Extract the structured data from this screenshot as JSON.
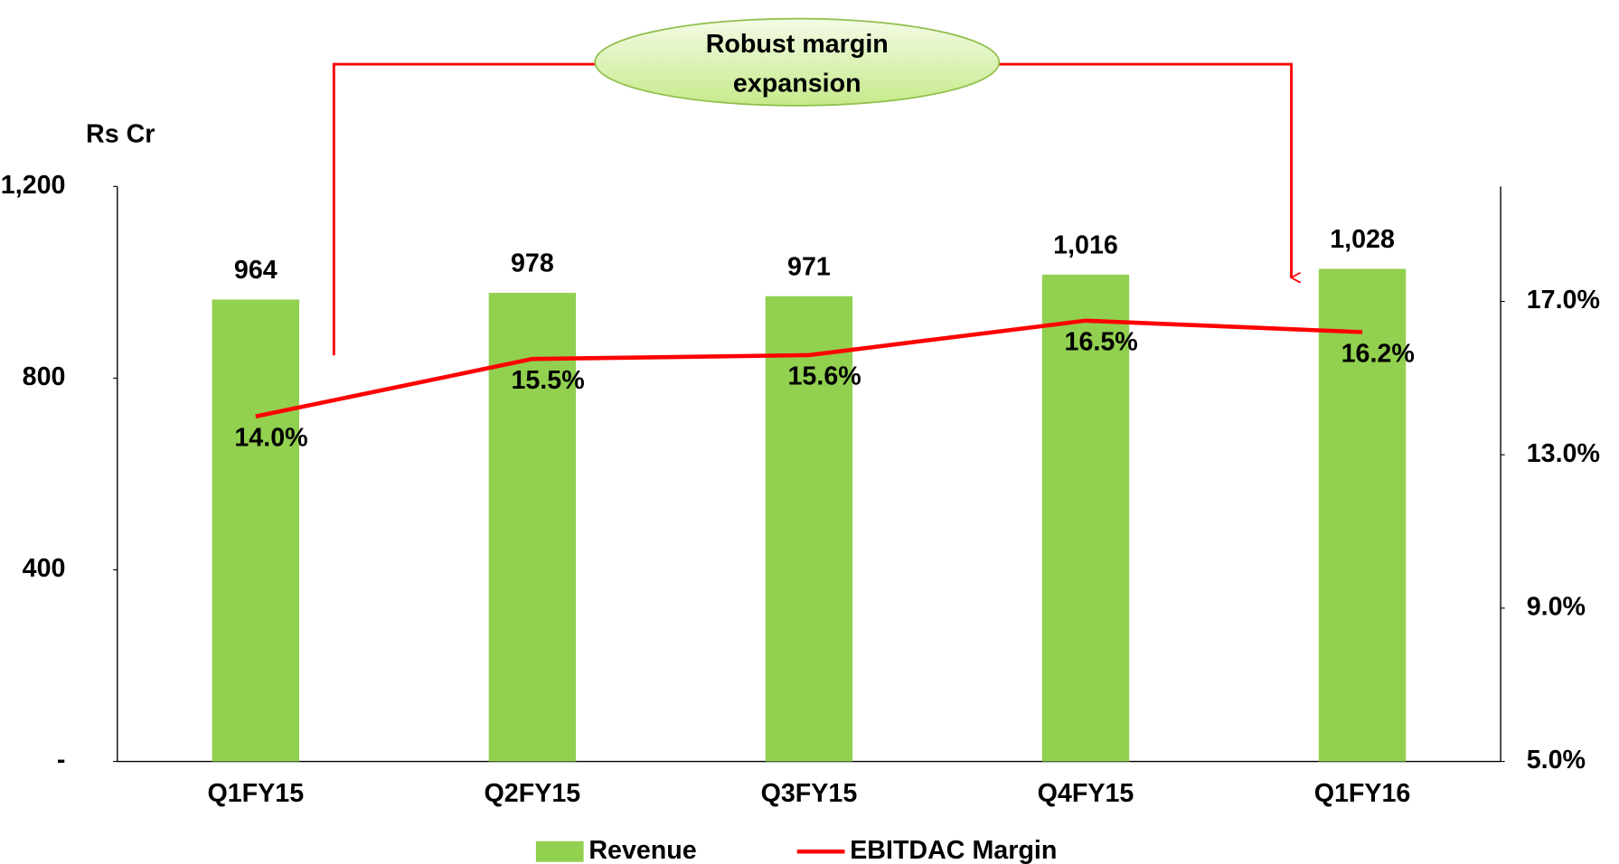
{
  "chart_data": {
    "type": "bar",
    "y_axis_label": "Rs Cr",
    "annotation": [
      "Robust margin",
      "expansion"
    ],
    "categories": [
      "Q1FY15",
      "Q2FY15",
      "Q3FY15",
      "Q4FY15",
      "Q1FY16"
    ],
    "series": [
      {
        "name": "Revenue",
        "type": "bar",
        "color": "#92d050",
        "values": [
          964,
          978,
          971,
          1016,
          1028
        ],
        "value_labels": [
          "964",
          "978",
          "971",
          "1,016",
          "1,028"
        ]
      },
      {
        "name": "EBITDAC Margin",
        "type": "line",
        "axis": "y2",
        "color": "#ff0000",
        "values": [
          14.0,
          15.5,
          15.6,
          16.5,
          16.2
        ],
        "value_labels": [
          "14.0%",
          "15.5%",
          "15.6%",
          "16.5%",
          "16.2%"
        ]
      }
    ],
    "ylim": [
      0,
      1200
    ],
    "yticks": [
      {
        "value": 0,
        "label": "-"
      },
      400,
      800,
      {
        "value": 1200,
        "label": "1,200"
      }
    ],
    "y2lim": [
      5,
      20
    ],
    "y2ticks": [
      {
        "value": 5,
        "label": "5.0%"
      },
      {
        "value": 9,
        "label": "9.0%"
      },
      {
        "value": 13,
        "label": "13.0%"
      },
      {
        "value": 17,
        "label": "17.0%"
      }
    ],
    "legend": "bottom"
  }
}
